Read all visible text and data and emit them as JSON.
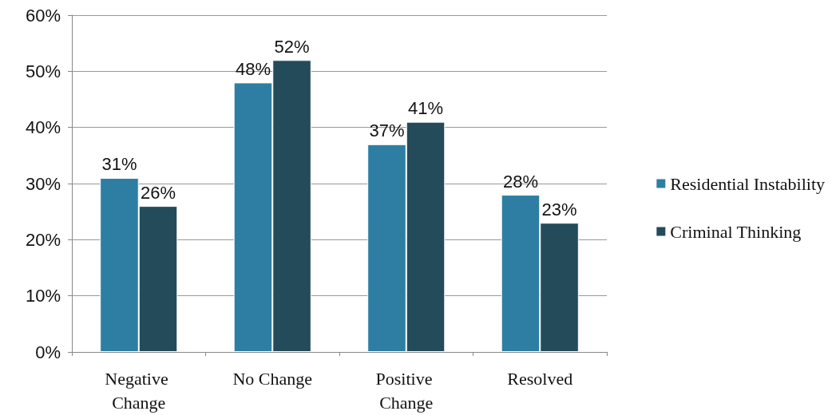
{
  "chart_data": {
    "type": "bar",
    "categories": [
      "Negative Change",
      "No Change",
      "Positive Change",
      "Resolved"
    ],
    "series": [
      {
        "name": "Residential Instability",
        "color": "#2e7ea3",
        "values": [
          31,
          48,
          37,
          28
        ],
        "value_labels": [
          "31%",
          "48%",
          "37%",
          "28%"
        ]
      },
      {
        "name": "Criminal Thinking",
        "color": "#244b5a",
        "values": [
          26,
          52,
          41,
          23
        ],
        "value_labels": [
          "26%",
          "52%",
          "41%",
          "23%"
        ]
      }
    ],
    "ylim": [
      0,
      60
    ],
    "yticks": [
      {
        "value": 0,
        "label": "0%"
      },
      {
        "value": 10,
        "label": "10%"
      },
      {
        "value": 20,
        "label": "20%"
      },
      {
        "value": 30,
        "label": "30%"
      },
      {
        "value": 40,
        "label": "40%"
      },
      {
        "value": 50,
        "label": "50%"
      },
      {
        "value": 60,
        "label": "60%"
      }
    ],
    "grid": "y",
    "legend": "right"
  }
}
